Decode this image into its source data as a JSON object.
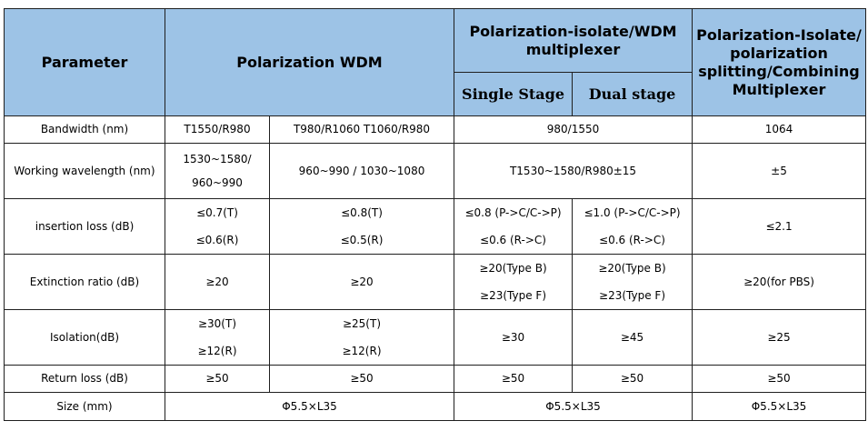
{
  "header": {
    "parameter": "Parameter",
    "pol_wdm": "Polarization WDM",
    "pol_isolate_wdm": "Polarization-isolate/WDM multiplexer",
    "single_stage": "Single Stage",
    "dual_stage": "Dual stage",
    "pol_isolate_split": "Polarization-Isolate/ polarization splitting/Combining Multiplexer"
  },
  "rows": {
    "bandwidth": {
      "label": "Bandwidth (nm)",
      "wdm_a": "T1550/R980",
      "wdm_b": "T980/R1060 T1060/R980",
      "mux": "980/1550",
      "split": "1064"
    },
    "wavelength": {
      "label": "Working wavelength (nm)",
      "wdm_a_line1": "1530~1580/",
      "wdm_a_line2": "960~990",
      "wdm_b": "960~990 / 1030~1080",
      "mux": "T1530~1580/R980±15",
      "split": "±5"
    },
    "insertion": {
      "label": "insertion loss (dB)",
      "wdm_a_line1": "≤0.7(T)",
      "wdm_a_line2": "≤0.6(R)",
      "wdm_b_line1": "≤0.8(T)",
      "wdm_b_line2": "≤0.5(R)",
      "single_line1": "≤0.8 (P->C/C->P)",
      "single_line2": "≤0.6 (R->C)",
      "dual_line1": "≤1.0 (P->C/C->P)",
      "dual_line2": "≤0.6 (R->C)",
      "split": "≤2.1"
    },
    "extinction": {
      "label": "Extinction ratio (dB)",
      "wdm_a": "≥20",
      "wdm_b": "≥20",
      "single_line1": "≥20(Type B)",
      "single_line2": "≥23(Type F)",
      "dual_line1": "≥20(Type B)",
      "dual_line2": "≥23(Type F)",
      "split": "≥20(for PBS)"
    },
    "isolation": {
      "label": "Isolation(dB)",
      "wdm_a_line1": "≥30(T)",
      "wdm_a_line2": "≥12(R)",
      "wdm_b_line1": "≥25(T)",
      "wdm_b_line2": "≥12(R)",
      "single": "≥30",
      "dual": "≥45",
      "split": "≥25"
    },
    "return_loss": {
      "label": "Return loss (dB)",
      "wdm_a": "≥50",
      "wdm_b": "≥50",
      "single": "≥50",
      "dual": "≥50",
      "split": "≥50"
    },
    "size": {
      "label": "Size (mm)",
      "wdm": "Φ5.5×L35",
      "mux": "Φ5.5×L35",
      "split": "Φ5.5×L35"
    }
  }
}
